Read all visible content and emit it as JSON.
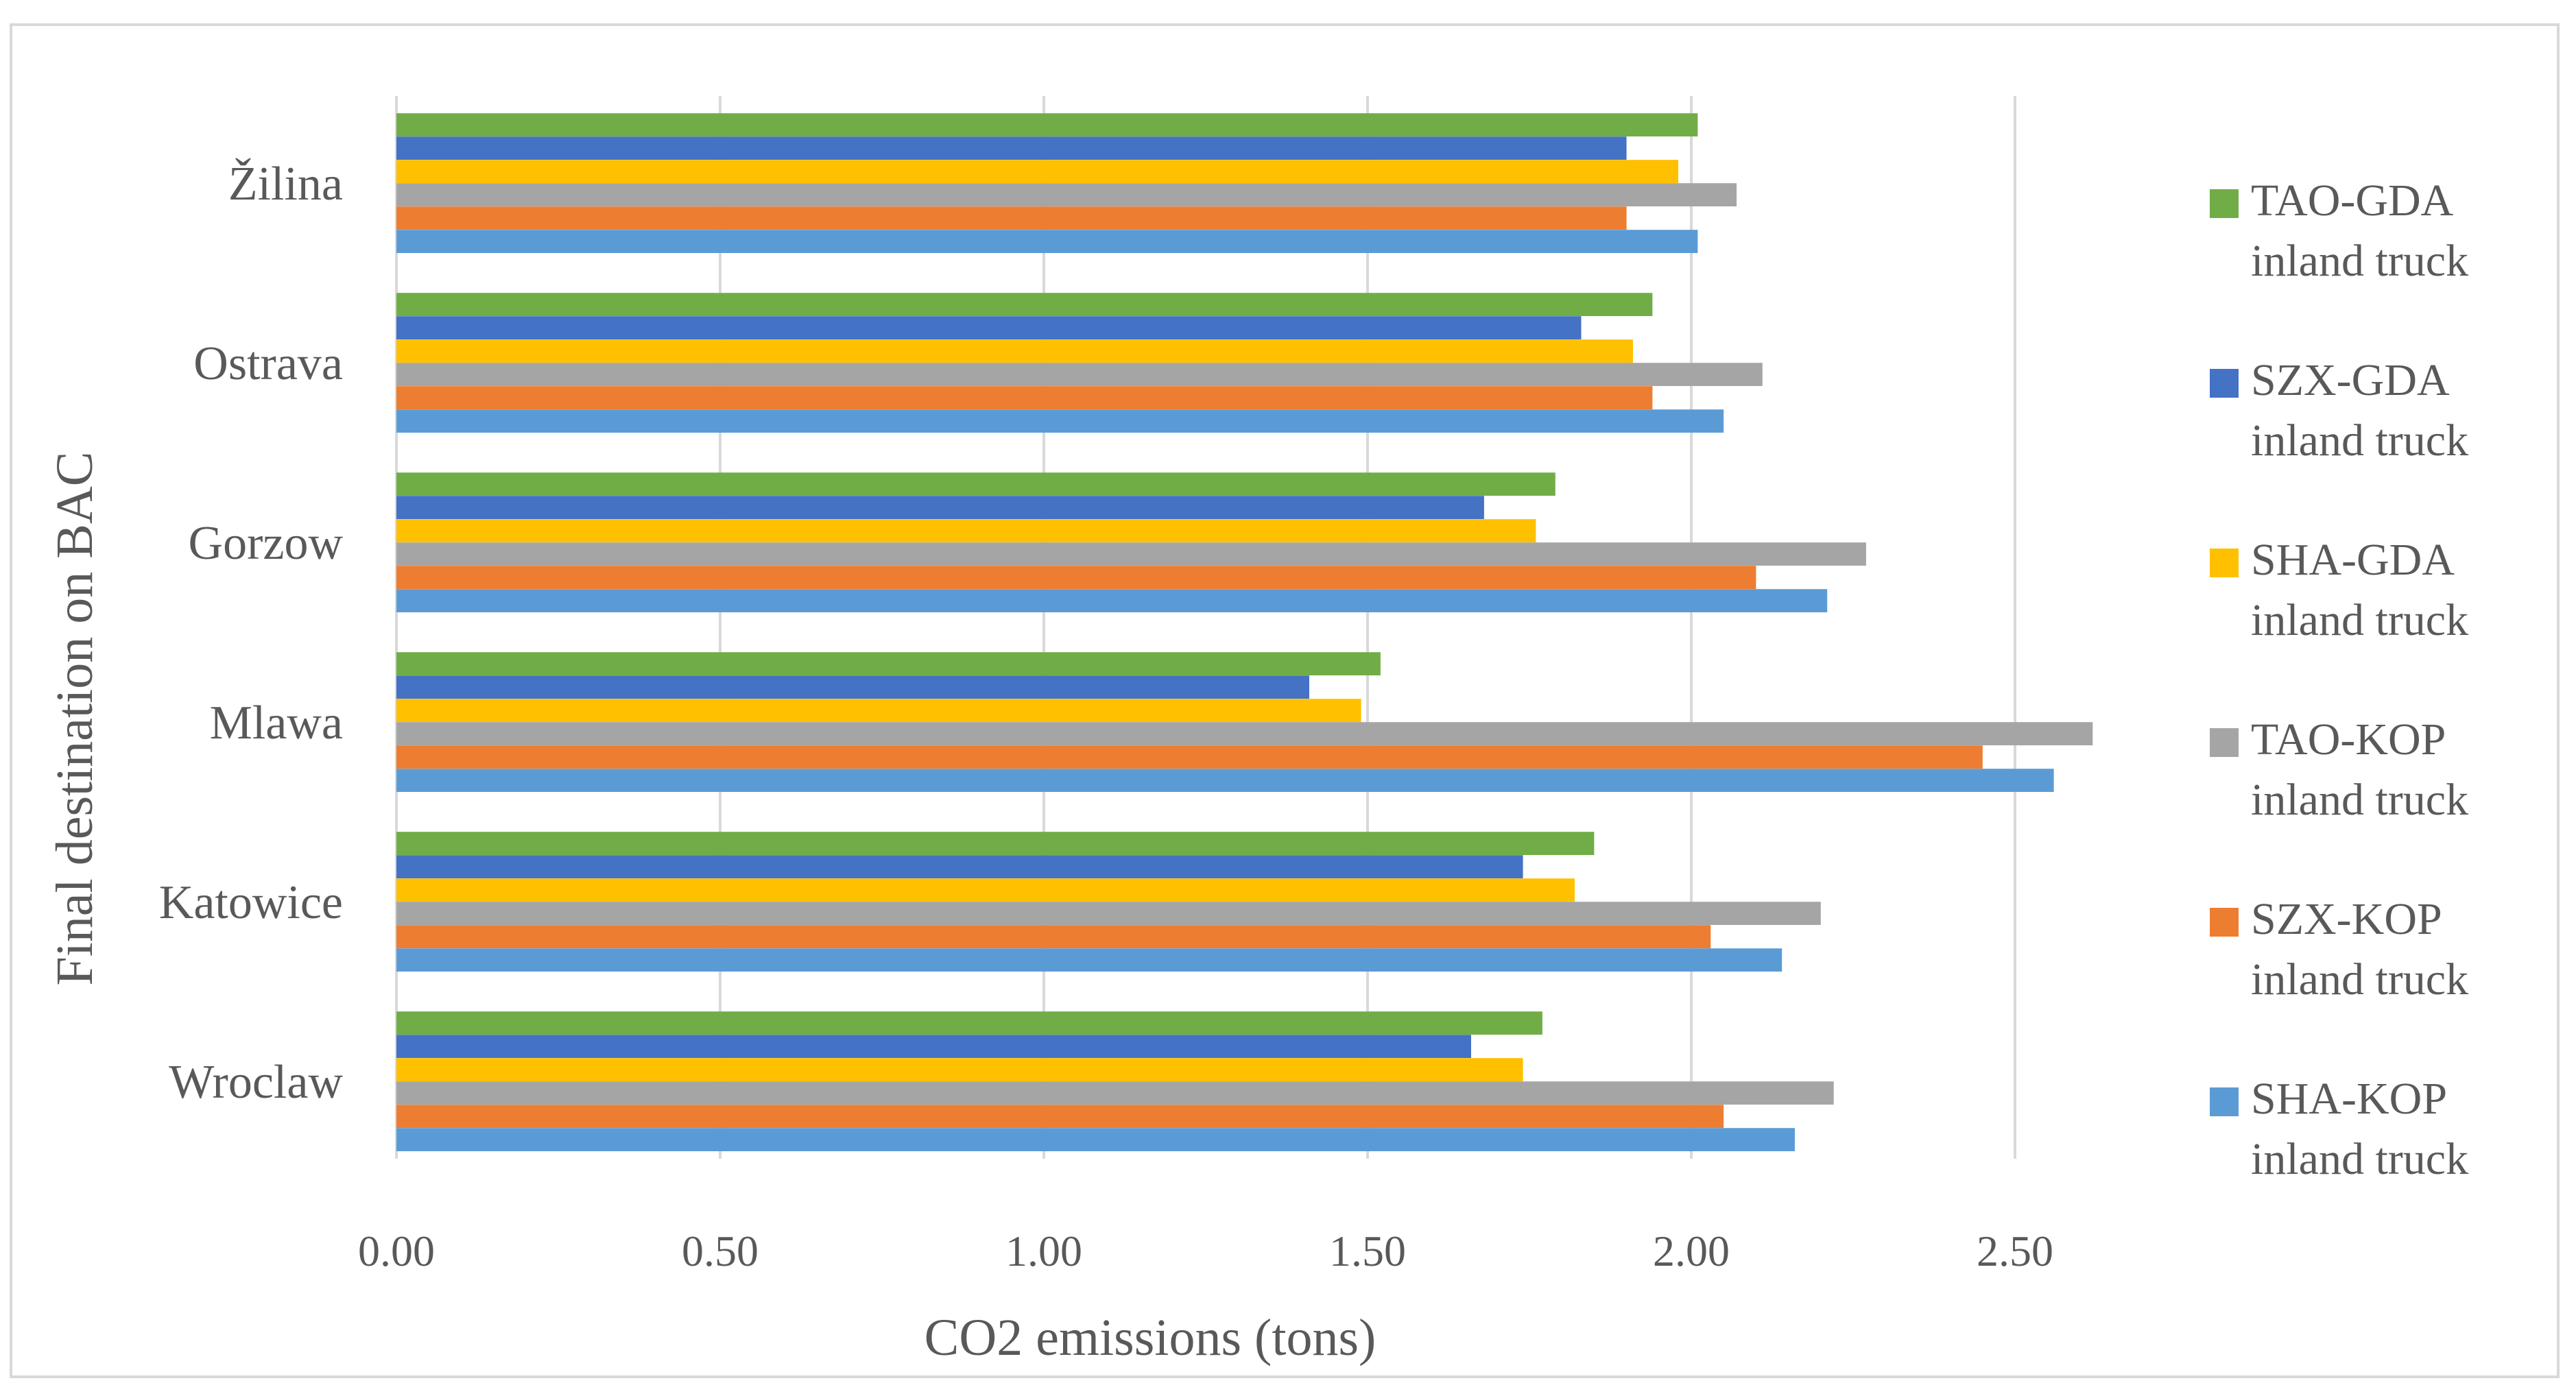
{
  "chart_data": {
    "type": "bar",
    "orientation": "horizontal",
    "title": "",
    "xlabel": "CO2 emissions (tons)",
    "ylabel": "Final destination on BAC",
    "xlim": [
      0,
      2.6
    ],
    "x_ticks": [
      "0.00",
      "0.50",
      "1.00",
      "1.50",
      "2.00",
      "2.50"
    ],
    "x_tick_values": [
      0,
      0.5,
      1.0,
      1.5,
      2.0,
      2.5
    ],
    "grid": true,
    "legend_position": "right",
    "categories": [
      "Wroclaw",
      "Katowice",
      "Mlawa",
      "Gorzow",
      "Ostrava",
      "Žilina"
    ],
    "series": [
      {
        "name": "SHA-KOP inland truck",
        "name_lines": [
          "SHA-KOP",
          "inland truck"
        ],
        "color": "#5b9bd5",
        "values": [
          2.16,
          2.14,
          2.56,
          2.21,
          2.05,
          2.01
        ]
      },
      {
        "name": "SZX-KOP inland truck",
        "name_lines": [
          "SZX-KOP",
          "inland truck"
        ],
        "color": "#ed7d31",
        "values": [
          2.05,
          2.03,
          2.45,
          2.1,
          1.94,
          1.9
        ]
      },
      {
        "name": "TAO-KOP inland truck",
        "name_lines": [
          "TAO-KOP",
          "inland truck"
        ],
        "color": "#a5a5a5",
        "values": [
          2.22,
          2.2,
          2.62,
          2.27,
          2.11,
          2.07
        ]
      },
      {
        "name": "SHA-GDA inland truck",
        "name_lines": [
          "SHA-GDA",
          "inland truck"
        ],
        "color": "#ffc000",
        "values": [
          1.74,
          1.82,
          1.49,
          1.76,
          1.91,
          1.98
        ]
      },
      {
        "name": "SZX-GDA inland truck",
        "name_lines": [
          "SZX-GDA",
          "inland truck"
        ],
        "color": "#4472c4",
        "values": [
          1.66,
          1.74,
          1.41,
          1.68,
          1.83,
          1.9
        ]
      },
      {
        "name": "TAO-GDA inland truck",
        "name_lines": [
          "TAO-GDA",
          "inland truck"
        ],
        "color": "#70ad47",
        "values": [
          1.77,
          1.85,
          1.52,
          1.79,
          1.94,
          2.01
        ]
      }
    ],
    "gridline_color": "#d9d9d9"
  }
}
